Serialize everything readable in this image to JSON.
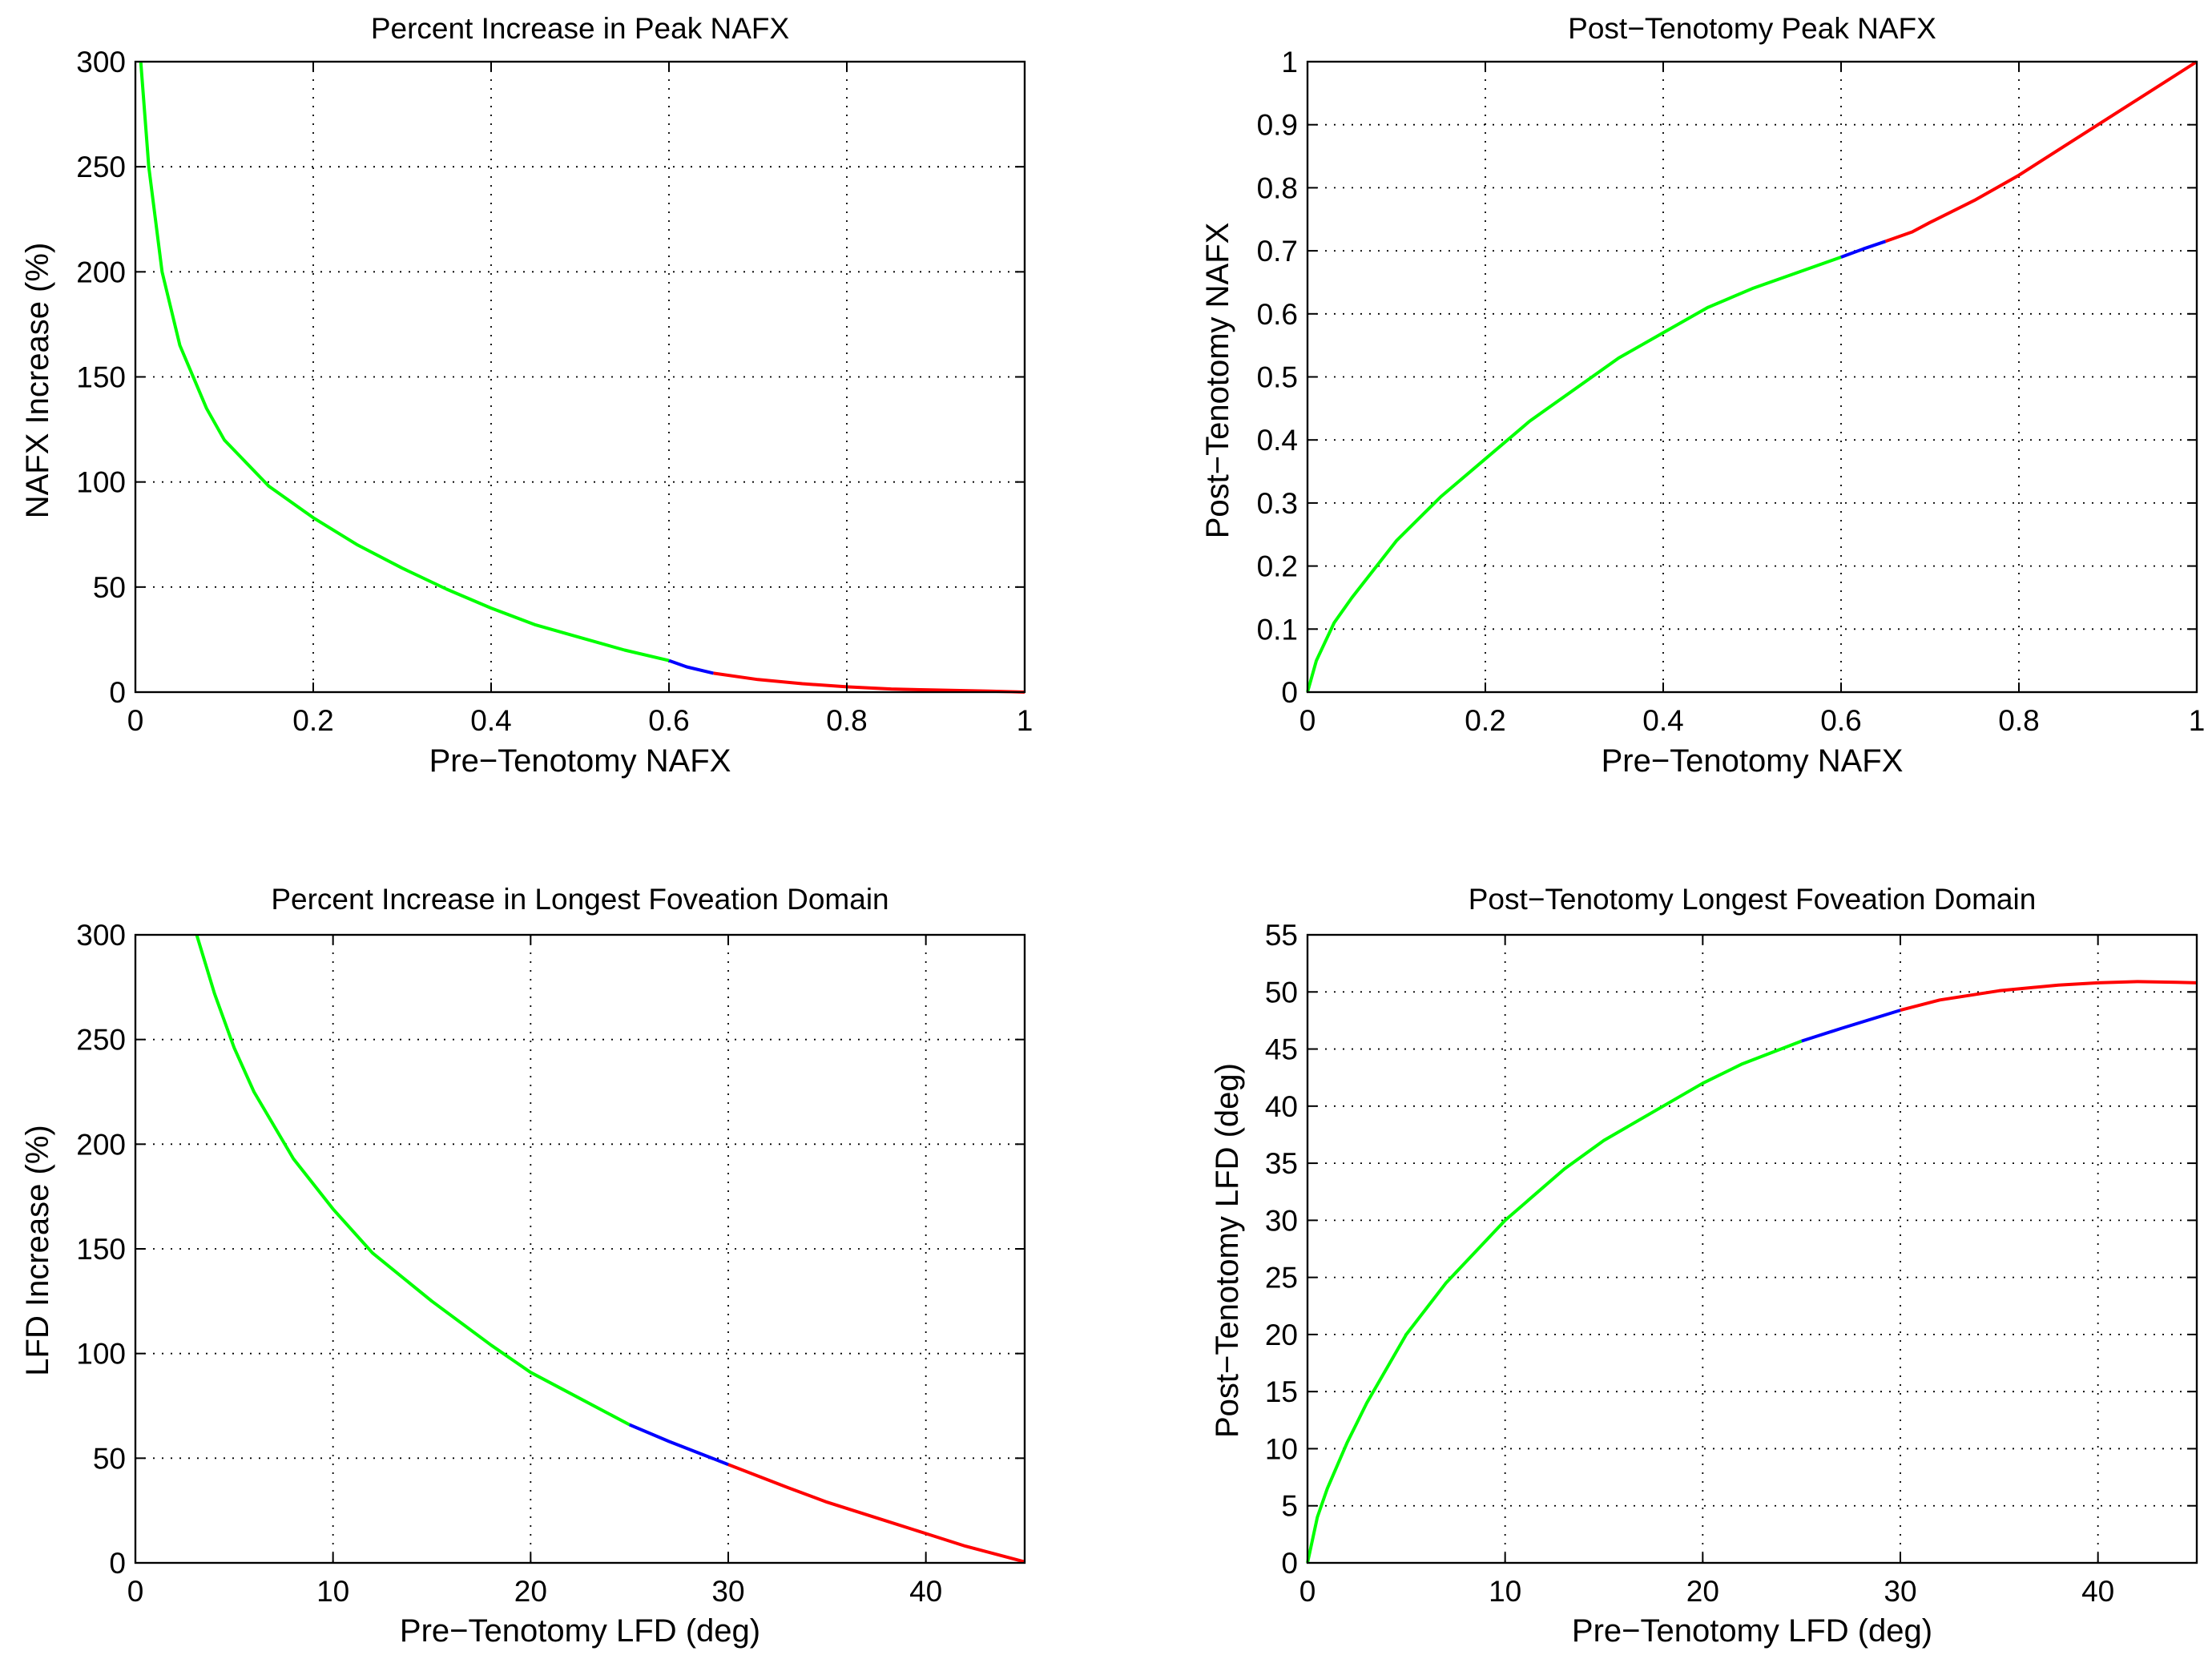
{
  "chart_data": [
    {
      "type": "line",
      "title": "Percent Increase in Peak NAFX",
      "xlabel": "Pre−Tenotomy NAFX",
      "ylabel": "NAFX Increase (%)",
      "xlim": [
        0,
        1
      ],
      "ylim": [
        0,
        300
      ],
      "xticks": [
        0,
        0.2,
        0.4,
        0.6,
        0.8,
        1
      ],
      "yticks": [
        0,
        50,
        100,
        150,
        200,
        250,
        300
      ],
      "xtick_labels": [
        "0",
        "0.2",
        "0.4",
        "0.6",
        "0.8",
        "1"
      ],
      "ytick_labels": [
        "0",
        "50",
        "100",
        "150",
        "200",
        "250",
        "300"
      ],
      "grid": true,
      "series": [
        {
          "color": "#00ff00",
          "x": [
            0.006,
            0.015,
            0.03,
            0.05,
            0.08,
            0.1,
            0.15,
            0.2,
            0.25,
            0.3,
            0.35,
            0.4,
            0.45,
            0.5,
            0.55,
            0.6
          ],
          "y": [
            300,
            250,
            200,
            165,
            135,
            120,
            98,
            83,
            70,
            59,
            49,
            40,
            32,
            26,
            20,
            15
          ]
        },
        {
          "color": "#0000ff",
          "x": [
            0.6,
            0.62,
            0.65
          ],
          "y": [
            15,
            12,
            9
          ]
        },
        {
          "color": "#ff0000",
          "x": [
            0.65,
            0.7,
            0.75,
            0.8,
            0.85,
            0.9,
            0.96,
            1.0
          ],
          "y": [
            9,
            6,
            4,
            2.5,
            1.5,
            1,
            0.5,
            0
          ]
        }
      ]
    },
    {
      "type": "line",
      "title": "Post−Tenotomy Peak NAFX",
      "xlabel": "Pre−Tenotomy NAFX",
      "ylabel": "Post−Tenotomy NAFX",
      "xlim": [
        0,
        1
      ],
      "ylim": [
        0,
        1
      ],
      "xticks": [
        0,
        0.2,
        0.4,
        0.6,
        0.8,
        1
      ],
      "yticks": [
        0,
        0.1,
        0.2,
        0.3,
        0.4,
        0.5,
        0.6,
        0.7,
        0.8,
        0.9,
        1
      ],
      "xtick_labels": [
        "0",
        "0.2",
        "0.4",
        "0.6",
        "0.8",
        "1"
      ],
      "ytick_labels": [
        "0",
        "0.1",
        "0.2",
        "0.3",
        "0.4",
        "0.5",
        "0.6",
        "0.7",
        "0.8",
        "0.9",
        "1"
      ],
      "grid": true,
      "series": [
        {
          "color": "#00ff00",
          "x": [
            0,
            0.01,
            0.03,
            0.05,
            0.1,
            0.15,
            0.2,
            0.25,
            0.3,
            0.35,
            0.4,
            0.45,
            0.5,
            0.55,
            0.6
          ],
          "y": [
            0,
            0.05,
            0.11,
            0.15,
            0.24,
            0.31,
            0.37,
            0.43,
            0.48,
            0.53,
            0.57,
            0.61,
            0.64,
            0.665,
            0.69
          ]
        },
        {
          "color": "#0000ff",
          "x": [
            0.6,
            0.625,
            0.65
          ],
          "y": [
            0.69,
            0.703,
            0.715
          ]
        },
        {
          "color": "#ff0000",
          "x": [
            0.65,
            0.68,
            0.7,
            0.75,
            0.8,
            0.85,
            0.9,
            0.95,
            1.0
          ],
          "y": [
            0.715,
            0.73,
            0.745,
            0.78,
            0.82,
            0.865,
            0.91,
            0.955,
            1.0
          ]
        }
      ]
    },
    {
      "type": "line",
      "title": "Percent Increase in Longest Foveation Domain",
      "xlabel": "Pre−Tenotomy LFD (deg)",
      "ylabel": "LFD Increase (%)",
      "xlim": [
        0,
        45
      ],
      "ylim": [
        0,
        300
      ],
      "xticks": [
        0,
        10,
        20,
        30,
        40
      ],
      "yticks": [
        0,
        50,
        100,
        150,
        200,
        250,
        300
      ],
      "xtick_labels": [
        "0",
        "10",
        "20",
        "30",
        "40"
      ],
      "ytick_labels": [
        "0",
        "50",
        "100",
        "150",
        "200",
        "250",
        "300"
      ],
      "grid": true,
      "series": [
        {
          "color": "#00ff00",
          "x": [
            3.1,
            4,
            5,
            6,
            8,
            10,
            12,
            15,
            18,
            20,
            22,
            25
          ],
          "y": [
            300,
            272,
            246,
            225,
            193,
            169,
            148,
            125,
            104,
            91,
            81,
            66
          ]
        },
        {
          "color": "#0000ff",
          "x": [
            25,
            27,
            30
          ],
          "y": [
            66,
            58,
            47
          ]
        },
        {
          "color": "#ff0000",
          "x": [
            30,
            33,
            35,
            38,
            40,
            42,
            45
          ],
          "y": [
            47,
            36,
            29,
            20,
            14,
            8,
            0.5
          ]
        }
      ]
    },
    {
      "type": "line",
      "title": "Post−Tenotomy Longest Foveation Domain",
      "xlabel": "Pre−Tenotomy LFD (deg)",
      "ylabel": "Post−Tenotomy LFD (deg)",
      "xlim": [
        0,
        45
      ],
      "ylim": [
        0,
        55
      ],
      "xticks": [
        0,
        10,
        20,
        30,
        40
      ],
      "yticks": [
        0,
        5,
        10,
        15,
        20,
        25,
        30,
        35,
        40,
        45,
        50,
        55
      ],
      "xtick_labels": [
        "0",
        "10",
        "20",
        "30",
        "40"
      ],
      "ytick_labels": [
        "0",
        "5",
        "10",
        "15",
        "20",
        "25",
        "30",
        "35",
        "40",
        "45",
        "50",
        "55"
      ],
      "grid": true,
      "series": [
        {
          "color": "#00ff00",
          "x": [
            0,
            0.5,
            1,
            2,
            3,
            5,
            7,
            10,
            13,
            15,
            18,
            20,
            22,
            25
          ],
          "y": [
            0,
            4,
            6.5,
            10.5,
            14,
            20,
            24.5,
            30,
            34.5,
            37,
            40,
            42,
            43.7,
            45.7
          ]
        },
        {
          "color": "#0000ff",
          "x": [
            25,
            27,
            30
          ],
          "y": [
            45.7,
            46.8,
            48.4
          ]
        },
        {
          "color": "#ff0000",
          "x": [
            30,
            32,
            35,
            38,
            40,
            42,
            44,
            45
          ],
          "y": [
            48.4,
            49.3,
            50.1,
            50.6,
            50.8,
            50.9,
            50.85,
            50.8
          ]
        }
      ]
    }
  ]
}
